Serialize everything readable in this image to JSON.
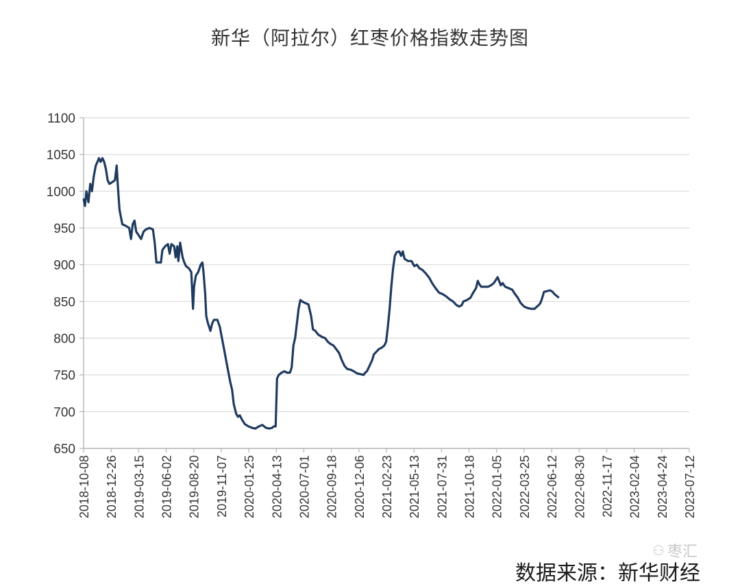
{
  "chart_data": {
    "type": "line",
    "title": "新华（阿拉尔）红枣价格指数走势图",
    "source": "数据来源：新华财经",
    "watermark": "枣汇",
    "ylim": [
      650,
      1100
    ],
    "yticks": [
      650,
      700,
      750,
      800,
      850,
      900,
      950,
      1000,
      1050,
      1100
    ],
    "grid": true,
    "line_color": "#1f3a5f",
    "xlim": [
      "2018-10-08",
      "2023-07-12"
    ],
    "xtick_labels": [
      "2018-10-08",
      "2018-12-26",
      "2019-03-15",
      "2019-06-02",
      "2019-08-20",
      "2019-11-07",
      "2020-01-25",
      "2020-04-13",
      "2020-07-01",
      "2020-09-18",
      "2020-12-06",
      "2021-02-23",
      "2021-05-13",
      "2021-07-31",
      "2021-10-18",
      "2022-01-05",
      "2022-03-25",
      "2022-06-12",
      "2022-08-30",
      "2022-11-17",
      "2023-02-04",
      "2023-04-24",
      "2023-07-12"
    ],
    "series": [
      {
        "values": [
          [
            "2018-10-08",
            990
          ],
          [
            "2018-10-12",
            980
          ],
          [
            "2018-10-16",
            1000
          ],
          [
            "2018-10-22",
            985
          ],
          [
            "2018-10-27",
            1010
          ],
          [
            "2018-11-01",
            1000
          ],
          [
            "2018-11-06",
            1020
          ],
          [
            "2018-11-12",
            1035
          ],
          [
            "2018-11-17",
            1040
          ],
          [
            "2018-11-21",
            1045
          ],
          [
            "2018-11-26",
            1040
          ],
          [
            "2018-12-01",
            1045
          ],
          [
            "2018-12-06",
            1040
          ],
          [
            "2018-12-11",
            1030
          ],
          [
            "2018-12-16",
            1015
          ],
          [
            "2018-12-21",
            1010
          ],
          [
            "2018-12-28",
            1012
          ],
          [
            "2019-01-06",
            1015
          ],
          [
            "2019-01-11",
            1035
          ],
          [
            "2019-01-14",
            1010
          ],
          [
            "2019-01-19",
            975
          ],
          [
            "2019-01-27",
            955
          ],
          [
            "2019-02-06",
            953
          ],
          [
            "2019-02-16",
            950
          ],
          [
            "2019-02-21",
            935
          ],
          [
            "2019-02-26",
            955
          ],
          [
            "2019-03-03",
            960
          ],
          [
            "2019-03-08",
            945
          ],
          [
            "2019-03-15",
            940
          ],
          [
            "2019-03-22",
            935
          ],
          [
            "2019-03-29",
            945
          ],
          [
            "2019-04-05",
            948
          ],
          [
            "2019-04-15",
            950
          ],
          [
            "2019-04-25",
            948
          ],
          [
            "2019-04-30",
            930
          ],
          [
            "2019-05-05",
            903
          ],
          [
            "2019-05-18",
            903
          ],
          [
            "2019-05-22",
            920
          ],
          [
            "2019-05-30",
            925
          ],
          [
            "2019-06-07",
            928
          ],
          [
            "2019-06-12",
            915
          ],
          [
            "2019-06-17",
            928
          ],
          [
            "2019-06-25",
            925
          ],
          [
            "2019-06-29",
            910
          ],
          [
            "2019-07-04",
            925
          ],
          [
            "2019-07-07",
            905
          ],
          [
            "2019-07-12",
            930
          ],
          [
            "2019-07-19",
            910
          ],
          [
            "2019-07-24",
            903
          ],
          [
            "2019-07-29",
            898
          ],
          [
            "2019-08-06",
            895
          ],
          [
            "2019-08-13",
            890
          ],
          [
            "2019-08-18",
            840
          ],
          [
            "2019-08-21",
            870
          ],
          [
            "2019-08-26",
            885
          ],
          [
            "2019-09-02",
            890
          ],
          [
            "2019-09-09",
            900
          ],
          [
            "2019-09-14",
            903
          ],
          [
            "2019-09-17",
            890
          ],
          [
            "2019-09-22",
            860
          ],
          [
            "2019-09-25",
            830
          ],
          [
            "2019-09-30",
            820
          ],
          [
            "2019-10-07",
            810
          ],
          [
            "2019-10-12",
            820
          ],
          [
            "2019-10-17",
            825
          ],
          [
            "2019-10-27",
            825
          ],
          [
            "2019-11-03",
            815
          ],
          [
            "2019-11-13",
            790
          ],
          [
            "2019-11-23",
            765
          ],
          [
            "2019-12-03",
            740
          ],
          [
            "2019-12-08",
            730
          ],
          [
            "2019-12-13",
            710
          ],
          [
            "2019-12-20",
            697
          ],
          [
            "2019-12-25",
            693
          ],
          [
            "2019-12-30",
            695
          ],
          [
            "2020-01-07",
            688
          ],
          [
            "2020-01-14",
            683
          ],
          [
            "2020-01-24",
            680
          ],
          [
            "2020-02-03",
            678
          ],
          [
            "2020-02-13",
            677
          ],
          [
            "2020-02-23",
            680
          ],
          [
            "2020-03-04",
            682
          ],
          [
            "2020-03-14",
            678
          ],
          [
            "2020-03-24",
            677
          ],
          [
            "2020-04-01",
            678
          ],
          [
            "2020-04-06",
            680
          ],
          [
            "2020-04-11",
            680
          ],
          [
            "2020-04-15",
            745
          ],
          [
            "2020-04-20",
            750
          ],
          [
            "2020-04-28",
            753
          ],
          [
            "2020-05-06",
            755
          ],
          [
            "2020-05-14",
            753
          ],
          [
            "2020-05-22",
            753
          ],
          [
            "2020-05-27",
            760
          ],
          [
            "2020-06-01",
            790
          ],
          [
            "2020-06-06",
            800
          ],
          [
            "2020-06-11",
            820
          ],
          [
            "2020-06-16",
            840
          ],
          [
            "2020-06-21",
            852
          ],
          [
            "2020-06-26",
            850
          ],
          [
            "2020-07-04",
            848
          ],
          [
            "2020-07-14",
            846
          ],
          [
            "2020-07-22",
            830
          ],
          [
            "2020-07-27",
            812
          ],
          [
            "2020-08-03",
            810
          ],
          [
            "2020-08-11",
            805
          ],
          [
            "2020-08-21",
            802
          ],
          [
            "2020-08-31",
            800
          ],
          [
            "2020-09-08",
            795
          ],
          [
            "2020-09-16",
            792
          ],
          [
            "2020-09-24",
            790
          ],
          [
            "2020-10-02",
            785
          ],
          [
            "2020-10-10",
            780
          ],
          [
            "2020-10-18",
            770
          ],
          [
            "2020-10-26",
            762
          ],
          [
            "2020-11-03",
            758
          ],
          [
            "2020-11-13",
            757
          ],
          [
            "2020-11-21",
            755
          ],
          [
            "2020-12-01",
            752
          ],
          [
            "2020-12-11",
            751
          ],
          [
            "2020-12-19",
            750
          ],
          [
            "2020-12-24",
            753
          ],
          [
            "2020-12-29",
            755
          ],
          [
            "2021-01-03",
            760
          ],
          [
            "2021-01-08",
            765
          ],
          [
            "2021-01-13",
            770
          ],
          [
            "2021-01-18",
            778
          ],
          [
            "2021-01-26",
            782
          ],
          [
            "2021-02-01",
            785
          ],
          [
            "2021-02-09",
            787
          ],
          [
            "2021-02-17",
            790
          ],
          [
            "2021-02-22",
            795
          ],
          [
            "2021-02-27",
            815
          ],
          [
            "2021-03-04",
            840
          ],
          [
            "2021-03-09",
            870
          ],
          [
            "2021-03-14",
            895
          ],
          [
            "2021-03-19",
            912
          ],
          [
            "2021-03-24",
            917
          ],
          [
            "2021-04-01",
            918
          ],
          [
            "2021-04-06",
            912
          ],
          [
            "2021-04-11",
            918
          ],
          [
            "2021-04-16",
            908
          ],
          [
            "2021-04-26",
            905
          ],
          [
            "2021-05-06",
            905
          ],
          [
            "2021-05-14",
            898
          ],
          [
            "2021-05-21",
            900
          ],
          [
            "2021-05-29",
            895
          ],
          [
            "2021-06-06",
            893
          ],
          [
            "2021-06-16",
            888
          ],
          [
            "2021-06-26",
            882
          ],
          [
            "2021-07-04",
            875
          ],
          [
            "2021-07-14",
            868
          ],
          [
            "2021-07-24",
            862
          ],
          [
            "2021-08-03",
            860
          ],
          [
            "2021-08-13",
            857
          ],
          [
            "2021-08-23",
            853
          ],
          [
            "2021-09-02",
            850
          ],
          [
            "2021-09-12",
            845
          ],
          [
            "2021-09-20",
            843
          ],
          [
            "2021-09-27",
            845
          ],
          [
            "2021-10-02",
            850
          ],
          [
            "2021-10-12",
            852
          ],
          [
            "2021-10-22",
            855
          ],
          [
            "2021-10-30",
            862
          ],
          [
            "2021-11-07",
            868
          ],
          [
            "2021-11-12",
            878
          ],
          [
            "2021-11-17",
            873
          ],
          [
            "2021-11-22",
            870
          ],
          [
            "2021-12-02",
            870
          ],
          [
            "2021-12-12",
            870
          ],
          [
            "2021-12-20",
            872
          ],
          [
            "2021-12-28",
            875
          ],
          [
            "2022-01-04",
            880
          ],
          [
            "2022-01-08",
            883
          ],
          [
            "2022-01-12",
            878
          ],
          [
            "2022-01-17",
            872
          ],
          [
            "2022-01-22",
            875
          ],
          [
            "2022-01-30",
            870
          ],
          [
            "2022-02-09",
            868
          ],
          [
            "2022-02-19",
            866
          ],
          [
            "2022-02-27",
            860
          ],
          [
            "2022-03-07",
            855
          ],
          [
            "2022-03-15",
            848
          ],
          [
            "2022-03-25",
            843
          ],
          [
            "2022-04-04",
            841
          ],
          [
            "2022-04-14",
            840
          ],
          [
            "2022-04-24",
            840
          ],
          [
            "2022-05-01",
            843
          ],
          [
            "2022-05-06",
            845
          ],
          [
            "2022-05-11",
            848
          ],
          [
            "2022-05-16",
            855
          ],
          [
            "2022-05-21",
            863
          ],
          [
            "2022-05-29",
            864
          ],
          [
            "2022-06-08",
            865
          ],
          [
            "2022-06-15",
            863
          ],
          [
            "2022-06-20",
            860
          ],
          [
            "2022-06-25",
            858
          ],
          [
            "2022-07-03",
            855
          ]
        ]
      }
    ]
  }
}
